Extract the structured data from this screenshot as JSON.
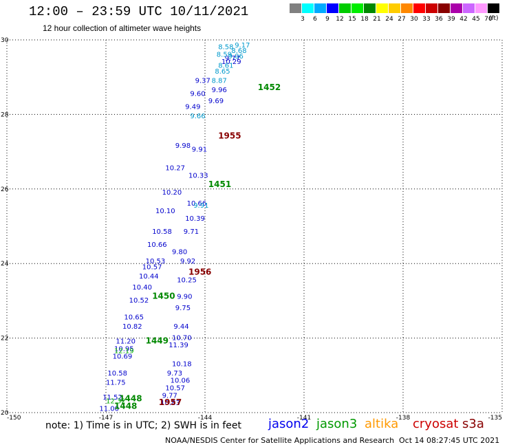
{
  "header": {
    "title": "12:00 – 23:59 UTC 10/11/2021",
    "subtitle": "12 hour collection of altimeter wave heights"
  },
  "colorbar": {
    "unit": "(ft)",
    "entries": [
      {
        "label": "3",
        "color": "#808080"
      },
      {
        "label": "6",
        "color": "#00ffff"
      },
      {
        "label": "9",
        "color": "#00aaff"
      },
      {
        "label": "12",
        "color": "#0000ff"
      },
      {
        "label": "15",
        "color": "#00cc00"
      },
      {
        "label": "18",
        "color": "#00ee00"
      },
      {
        "label": "21",
        "color": "#008800"
      },
      {
        "label": "24",
        "color": "#ffff00"
      },
      {
        "label": "27",
        "color": "#ffcc00"
      },
      {
        "label": "30",
        "color": "#ff8800"
      },
      {
        "label": "33",
        "color": "#ff0000"
      },
      {
        "label": "36",
        "color": "#cc0000"
      },
      {
        "label": "39",
        "color": "#880000"
      },
      {
        "label": "42",
        "color": "#aa00aa"
      },
      {
        "label": "45",
        "color": "#cc66ff"
      },
      {
        "label": "70",
        "color": "#ff99ff"
      },
      {
        "label": "",
        "color": "#000000"
      }
    ]
  },
  "map": {
    "lon_labels": [
      "-150",
      "-147",
      "-144",
      "-141",
      "-138",
      "-135"
    ],
    "lat_labels": [
      "20",
      "22",
      "24",
      "26",
      "28",
      "30"
    ],
    "lon_range": [
      -150,
      -135
    ],
    "lat_range": [
      20,
      30
    ],
    "tracks": [
      {
        "mission": "jason2",
        "color": "#0000cc",
        "points": [
          {
            "lon": -147.2,
            "lat": 20.05,
            "v": "11.00"
          },
          {
            "lon": -147.1,
            "lat": 20.35,
            "v": "11.52"
          },
          {
            "lon": -147.0,
            "lat": 20.75,
            "v": "11.75"
          },
          {
            "lon": -146.95,
            "lat": 21.0,
            "v": "10.58"
          },
          {
            "lon": -146.8,
            "lat": 21.45,
            "v": "10.69"
          },
          {
            "lon": -146.75,
            "lat": 21.65,
            "v": "10.95"
          },
          {
            "lon": -146.7,
            "lat": 21.85,
            "v": "11.20"
          },
          {
            "lon": -146.5,
            "lat": 22.25,
            "v": "10.82"
          },
          {
            "lon": -146.45,
            "lat": 22.5,
            "v": "10.65"
          },
          {
            "lon": -146.3,
            "lat": 22.95,
            "v": "10.52"
          },
          {
            "lon": -146.2,
            "lat": 23.3,
            "v": "10.40"
          },
          {
            "lon": -146.0,
            "lat": 23.6,
            "v": "10.44"
          },
          {
            "lon": -145.9,
            "lat": 23.85,
            "v": "10.57"
          },
          {
            "lon": -145.8,
            "lat": 24.0,
            "v": "10.53"
          },
          {
            "lon": -145.75,
            "lat": 24.45,
            "v": "10.66"
          },
          {
            "lon": -145.6,
            "lat": 24.8,
            "v": "10.58"
          },
          {
            "lon": -145.5,
            "lat": 25.35,
            "v": "10.10"
          },
          {
            "lon": -145.3,
            "lat": 25.85,
            "v": "10.20"
          },
          {
            "lon": -145.2,
            "lat": 26.5,
            "v": "10.27"
          },
          {
            "lon": -144.9,
            "lat": 27.1,
            "v": "9.98"
          },
          {
            "lon": -144.6,
            "lat": 28.15,
            "v": "9.49"
          },
          {
            "lon": -144.45,
            "lat": 28.5,
            "v": "9.60"
          },
          {
            "lon": -144.3,
            "lat": 28.85,
            "v": "9.37"
          },
          {
            "lon": -145.0,
            "lat": 24.25,
            "v": "9.80"
          },
          {
            "lon": -144.85,
            "lat": 23.5,
            "v": "10.25"
          },
          {
            "lon": -144.9,
            "lat": 22.75,
            "v": "9.75"
          },
          {
            "lon": -144.95,
            "lat": 22.25,
            "v": "9.44"
          },
          {
            "lon": -145.1,
            "lat": 21.75,
            "v": "11.39"
          },
          {
            "lon": -145.15,
            "lat": 21.0,
            "v": "9.73"
          },
          {
            "lon": -145.2,
            "lat": 20.6,
            "v": "10.57"
          },
          {
            "lon": -145.35,
            "lat": 20.2,
            "v": "10.83"
          },
          {
            "lon": -145.3,
            "lat": 20.4,
            "v": "9.77"
          },
          {
            "lon": -145.0,
            "lat": 21.25,
            "v": "10.18"
          },
          {
            "lon": -145.05,
            "lat": 20.8,
            "v": "10.06"
          },
          {
            "lon": -145.0,
            "lat": 21.95,
            "v": "10.70"
          },
          {
            "lon": -144.85,
            "lat": 23.05,
            "v": "9.90"
          },
          {
            "lon": -144.75,
            "lat": 24.0,
            "v": "9.92"
          },
          {
            "lon": -144.65,
            "lat": 24.8,
            "v": "9.71"
          },
          {
            "lon": -144.6,
            "lat": 25.15,
            "v": "10.39"
          },
          {
            "lon": -144.55,
            "lat": 25.55,
            "v": "10.66"
          },
          {
            "lon": -144.5,
            "lat": 26.3,
            "v": "10.33"
          },
          {
            "lon": -144.4,
            "lat": 27.0,
            "v": "9.91"
          },
          {
            "lon": -143.9,
            "lat": 28.3,
            "v": "9.69"
          },
          {
            "lon": -143.8,
            "lat": 28.6,
            "v": "9.96"
          },
          {
            "lon": -143.5,
            "lat": 29.35,
            "v": "10.29"
          },
          {
            "lon": -143.4,
            "lat": 29.45,
            "v": "9.77"
          }
        ]
      },
      {
        "mission": "jason2-light",
        "color": "#0099cc",
        "points": [
          {
            "lon": -143.6,
            "lat": 29.75,
            "v": "8.58"
          },
          {
            "lon": -143.65,
            "lat": 29.55,
            "v": "8.59"
          },
          {
            "lon": -143.6,
            "lat": 29.25,
            "v": "8.61"
          },
          {
            "lon": -143.7,
            "lat": 29.1,
            "v": "8.65"
          },
          {
            "lon": -143.8,
            "lat": 28.85,
            "v": "8.87"
          },
          {
            "lon": -143.1,
            "lat": 29.8,
            "v": "9.17"
          },
          {
            "lon": -143.2,
            "lat": 29.65,
            "v": "8.68"
          },
          {
            "lon": -143.3,
            "lat": 29.5,
            "v": "9.06"
          },
          {
            "lon": -144.35,
            "lat": 25.5,
            "v": "9.91"
          },
          {
            "lon": -144.45,
            "lat": 27.9,
            "v": "9.66"
          }
        ]
      },
      {
        "mission": "jason3",
        "color": "#00aa00",
        "points": [
          {
            "lon": -147.0,
            "lat": 20.25,
            "v": "12.32"
          },
          {
            "lon": -146.75,
            "lat": 21.6,
            "v": "12.19"
          }
        ]
      }
    ],
    "passes": [
      {
        "lon": -142.4,
        "lat": 28.65,
        "v": "1452",
        "color": "#008800"
      },
      {
        "lon": -143.9,
        "lat": 26.05,
        "v": "1451",
        "color": "#008800"
      },
      {
        "lon": -145.6,
        "lat": 23.05,
        "v": "1450",
        "color": "#008800"
      },
      {
        "lon": -145.8,
        "lat": 21.85,
        "v": "1449",
        "color": "#008800"
      },
      {
        "lon": -146.6,
        "lat": 20.3,
        "v": "1448",
        "color": "#008800"
      },
      {
        "lon": -146.75,
        "lat": 20.1,
        "v": "1448",
        "color": "#008800"
      },
      {
        "lon": -143.6,
        "lat": 27.35,
        "v": "1955",
        "color": "#880000"
      },
      {
        "lon": -144.5,
        "lat": 23.7,
        "v": "1956",
        "color": "#880000"
      },
      {
        "lon": -145.4,
        "lat": 20.2,
        "v": "1957",
        "color": "#880000"
      }
    ]
  },
  "footer": {
    "note": "note: 1) Time is in UTC; 2) SWH is in feet",
    "missions": [
      {
        "name": "jason2",
        "color": "#0000ee"
      },
      {
        "name": "jason3",
        "color": "#009900"
      },
      {
        "name": "altika",
        "color": "#ff9900"
      },
      {
        "name": "cryosat",
        "color": "#cc0000"
      },
      {
        "name": "s3a",
        "color": "#880000"
      }
    ],
    "credit": "NOAA/NESDIS Center for Satellite Applications and Research",
    "timestamp": "Oct 14 08:27:45 UTC 2021"
  }
}
